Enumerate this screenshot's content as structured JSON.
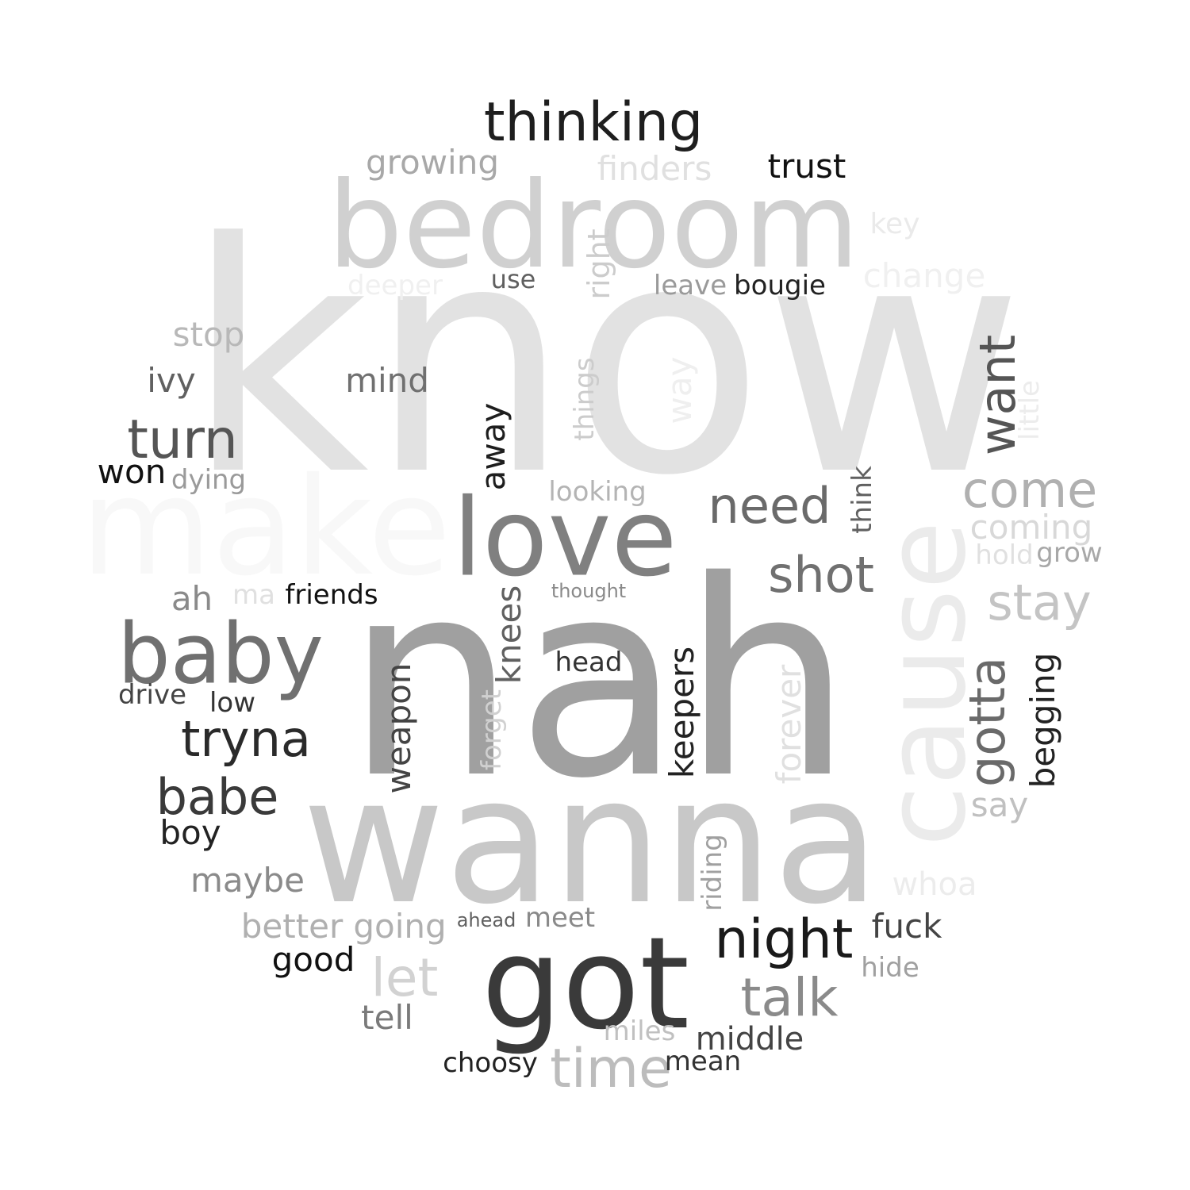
{
  "words": [
    {
      "text": "know",
      "color": "#e2e2e2"
    },
    {
      "text": "make",
      "color": "#f8f8f8"
    },
    {
      "text": "bedroom",
      "color": "#d0d0d0"
    },
    {
      "text": "nah",
      "color": "#a0a0a0"
    },
    {
      "text": "wanna",
      "color": "#c8c8c8"
    },
    {
      "text": "cause",
      "color": "#ebebeb"
    },
    {
      "text": "got",
      "color": "#3a3a3a"
    },
    {
      "text": "love",
      "color": "#808080"
    },
    {
      "text": "thinking",
      "color": "#1e1e1e"
    },
    {
      "text": "baby",
      "color": "#707070"
    },
    {
      "text": "turn",
      "color": "#555555"
    },
    {
      "text": "tryna",
      "color": "#2a2a2a"
    },
    {
      "text": "babe",
      "color": "#3a3a3a"
    },
    {
      "text": "night",
      "color": "#1a1a1a"
    },
    {
      "text": "need",
      "color": "#6a6a6a"
    },
    {
      "text": "shot",
      "color": "#707070"
    },
    {
      "text": "come",
      "color": "#b0b0b0"
    },
    {
      "text": "stay",
      "color": "#c4c4c4"
    },
    {
      "text": "want",
      "color": "#555555"
    },
    {
      "text": "gotta",
      "color": "#6a6a6a"
    },
    {
      "text": "talk",
      "color": "#8a8a8a"
    },
    {
      "text": "time",
      "color": "#bcbcbc"
    },
    {
      "text": "let",
      "color": "#d2d2d2"
    },
    {
      "text": "growing",
      "color": "#a8a8a8"
    },
    {
      "text": "finders",
      "color": "#e0e0e0"
    },
    {
      "text": "trust",
      "color": "#111111"
    },
    {
      "text": "key",
      "color": "#eaeaea"
    },
    {
      "text": "change",
      "color": "#f0f0f0"
    },
    {
      "text": "deeper",
      "color": "#f0f0f0"
    },
    {
      "text": "use",
      "color": "#606060"
    },
    {
      "text": "right",
      "color": "#cccccc"
    },
    {
      "text": "leave",
      "color": "#9a9a9a"
    },
    {
      "text": "bougie",
      "color": "#222222"
    },
    {
      "text": "stop",
      "color": "#b8b8b8"
    },
    {
      "text": "ivy",
      "color": "#606060"
    },
    {
      "text": "mind",
      "color": "#707070"
    },
    {
      "text": "things",
      "color": "#cccccc"
    },
    {
      "text": "way",
      "color": "#efefef"
    },
    {
      "text": "little",
      "color": "#ececec"
    },
    {
      "text": "won",
      "color": "#111111"
    },
    {
      "text": "dying",
      "color": "#9a9a9a"
    },
    {
      "text": "away",
      "color": "#1e1e1e"
    },
    {
      "text": "looking",
      "color": "#b4b4b4"
    },
    {
      "text": "think",
      "color": "#606060"
    },
    {
      "text": "coming",
      "color": "#d8d8d8"
    },
    {
      "text": "hold",
      "color": "#e0e0e0"
    },
    {
      "text": "grow",
      "color": "#a8a8a8"
    },
    {
      "text": "ah",
      "color": "#8a8a8a"
    },
    {
      "text": "ma",
      "color": "#e0e0e0"
    },
    {
      "text": "friends",
      "color": "#111111"
    },
    {
      "text": "thought",
      "color": "#8a8a8a"
    },
    {
      "text": "knees",
      "color": "#606060"
    },
    {
      "text": "head",
      "color": "#333333"
    },
    {
      "text": "keepers",
      "color": "#222222"
    },
    {
      "text": "weapon",
      "color": "#444444"
    },
    {
      "text": "forget",
      "color": "#d0d0d0"
    },
    {
      "text": "forever",
      "color": "#e0e0e0"
    },
    {
      "text": "begging",
      "color": "#222222"
    },
    {
      "text": "drive",
      "color": "#444444"
    },
    {
      "text": "low",
      "color": "#333333"
    },
    {
      "text": "boy",
      "color": "#222222"
    },
    {
      "text": "say",
      "color": "#c0c0c0"
    },
    {
      "text": "riding",
      "color": "#a0a0a0"
    },
    {
      "text": "whoa",
      "color": "#ececec"
    },
    {
      "text": "maybe",
      "color": "#8a8a8a"
    },
    {
      "text": "better",
      "color": "#b0b0b0"
    },
    {
      "text": "going",
      "color": "#b0b0b0"
    },
    {
      "text": "ahead",
      "color": "#606060"
    },
    {
      "text": "meet",
      "color": "#8a8a8a"
    },
    {
      "text": "fuck",
      "color": "#444444"
    },
    {
      "text": "hide",
      "color": "#a0a0a0"
    },
    {
      "text": "good",
      "color": "#111111"
    },
    {
      "text": "tell",
      "color": "#7a7a7a"
    },
    {
      "text": "miles",
      "color": "#c0c0c0"
    },
    {
      "text": "middle",
      "color": "#444444"
    },
    {
      "text": "choosy",
      "color": "#222222"
    },
    {
      "text": "mean",
      "color": "#333333"
    }
  ]
}
